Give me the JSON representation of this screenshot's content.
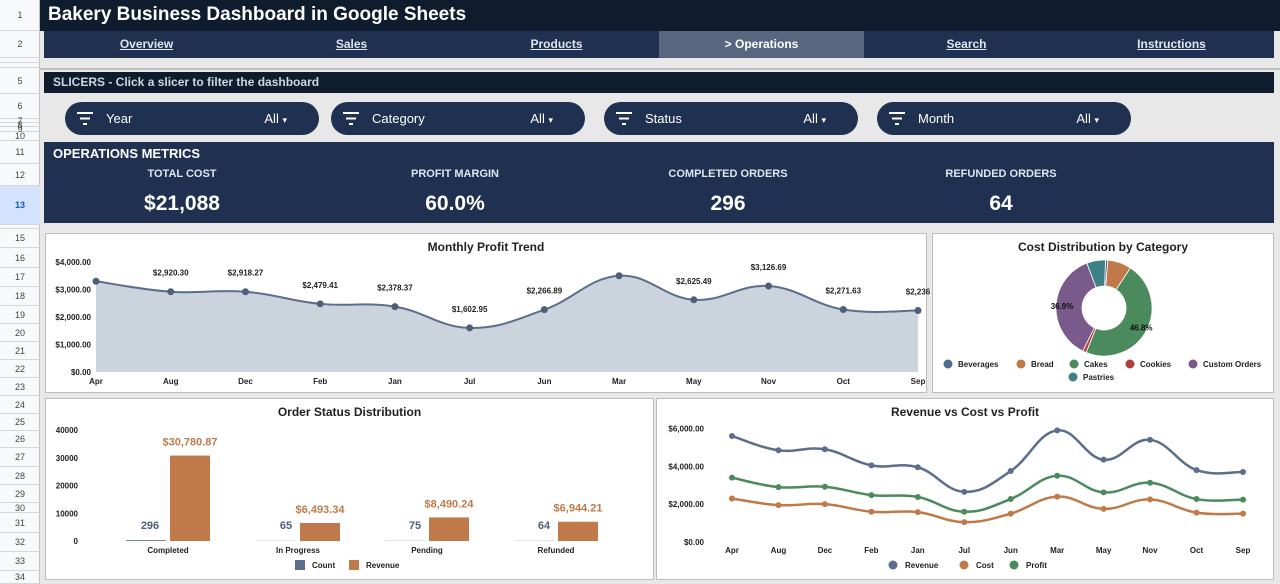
{
  "row_numbers": [
    {
      "n": "1",
      "top": 0,
      "h": 31
    },
    {
      "n": "2",
      "top": 31,
      "h": 27
    },
    {
      "n": "",
      "top": 58,
      "h": 5
    },
    {
      "n": "",
      "top": 63,
      "h": 5
    },
    {
      "n": "5",
      "top": 68,
      "h": 26
    },
    {
      "n": "6",
      "top": 94,
      "h": 25
    },
    {
      "n": "7",
      "top": 119,
      "h": 4
    },
    {
      "n": "8",
      "top": 123,
      "h": 4
    },
    {
      "n": "9",
      "top": 127,
      "h": 5
    },
    {
      "n": "10",
      "top": 132,
      "h": 9
    },
    {
      "n": "11",
      "top": 141,
      "h": 23
    },
    {
      "n": "12",
      "top": 164,
      "h": 22
    },
    {
      "n": "13",
      "top": 186,
      "h": 39
    },
    {
      "n": "",
      "top": 225,
      "h": 4
    },
    {
      "n": "15",
      "top": 229,
      "h": 19
    },
    {
      "n": "16",
      "top": 248,
      "h": 20
    },
    {
      "n": "17",
      "top": 268,
      "h": 19
    },
    {
      "n": "18",
      "top": 287,
      "h": 19
    },
    {
      "n": "19",
      "top": 306,
      "h": 18
    },
    {
      "n": "20",
      "top": 324,
      "h": 18
    },
    {
      "n": "21",
      "top": 342,
      "h": 18
    },
    {
      "n": "22",
      "top": 360,
      "h": 18
    },
    {
      "n": "23",
      "top": 378,
      "h": 18
    },
    {
      "n": "24",
      "top": 396,
      "h": 18
    },
    {
      "n": "25",
      "top": 414,
      "h": 17
    },
    {
      "n": "26",
      "top": 431,
      "h": 17
    },
    {
      "n": "27",
      "top": 448,
      "h": 19
    },
    {
      "n": "28",
      "top": 467,
      "h": 18
    },
    {
      "n": "29",
      "top": 485,
      "h": 18
    },
    {
      "n": "30",
      "top": 503,
      "h": 10
    },
    {
      "n": "31",
      "top": 513,
      "h": 20
    },
    {
      "n": "32",
      "top": 533,
      "h": 19
    },
    {
      "n": "33",
      "top": 552,
      "h": 19
    },
    {
      "n": "34",
      "top": 571,
      "h": 13
    }
  ],
  "title": "Bakery Business Dashboard in Google Sheets",
  "nav": [
    {
      "label": "Overview",
      "active": false
    },
    {
      "label": "Sales",
      "active": false
    },
    {
      "label": "Products",
      "active": false
    },
    {
      "label": "> Operations",
      "active": true
    },
    {
      "label": "Search",
      "active": false
    },
    {
      "label": "Instructions",
      "active": false
    }
  ],
  "slicers_header": "SLICERS - Click a slicer to filter the dashboard",
  "slicers": [
    {
      "label": "Year",
      "value": "All"
    },
    {
      "label": "Category",
      "value": "All"
    },
    {
      "label": "Status",
      "value": "All"
    },
    {
      "label": "Month",
      "value": "All"
    }
  ],
  "metrics": {
    "title": "OPERATIONS METRICS",
    "items": [
      {
        "label": "TOTAL COST",
        "value": "$21,088"
      },
      {
        "label": "PROFIT MARGIN",
        "value": "60.0%"
      },
      {
        "label": "COMPLETED ORDERS",
        "value": "296"
      },
      {
        "label": "REFUNDED ORDERS",
        "value": "64"
      }
    ]
  },
  "colors": {
    "navy": "#1f3050",
    "dark": "#0f1c2e",
    "line": "#5b6e8c",
    "area": "#cbd3dd",
    "revenue": "#5b6e8c",
    "cost": "#c07a4a",
    "profit": "#4a8a5c",
    "bar_revenue": "#c07a4a",
    "bar_count": "#5b6e8c"
  },
  "chart_data": [
    {
      "type": "area",
      "title": "Monthly Profit Trend",
      "categories": [
        "Apr",
        "Aug",
        "Dec",
        "Feb",
        "Jan",
        "Jul",
        "Jun",
        "Mar",
        "May",
        "Nov",
        "Oct",
        "Sep"
      ],
      "values": [
        3300,
        2920.3,
        2918.27,
        2479.41,
        2378.37,
        1602.95,
        2266.89,
        3500,
        2625.49,
        3126.69,
        2271.63,
        2236
      ],
      "labels": [
        "",
        "$2,920.30",
        "$2,918.27",
        "$2,479.41",
        "$2,378.37",
        "$1,602.95",
        "$2,266.89",
        "",
        "$2,625.49",
        "$3,126.69",
        "$2,271.63",
        "$2,236"
      ],
      "yticks": [
        "$0.00",
        "$1,000.00",
        "$2,000.00",
        "$3,000.00",
        "$4,000.00"
      ],
      "ylim": [
        0,
        4000
      ]
    },
    {
      "type": "pie",
      "title": "Cost Distribution by Category",
      "slices": [
        {
          "name": "Beverages",
          "value": 0.8,
          "color": "#4e6b8a"
        },
        {
          "name": "Bread",
          "value": 8.0,
          "color": "#c07a4a"
        },
        {
          "name": "Cakes",
          "value": 46.8,
          "color": "#4a8a5c"
        },
        {
          "name": "Cookies",
          "value": 1.2,
          "color": "#b04040"
        },
        {
          "name": "Custom Orders",
          "value": 36.9,
          "color": "#7a5a8a"
        },
        {
          "name": "Pastries",
          "value": 6.3,
          "color": "#3f7f86"
        }
      ],
      "slice_labels": {
        "Cakes": "46.8%",
        "Custom Orders": "36.9%"
      }
    },
    {
      "type": "bar",
      "title": "Order Status Distribution",
      "categories": [
        "Completed",
        "In Progress",
        "Pending",
        "Refunded"
      ],
      "series": [
        {
          "name": "Count",
          "values": [
            296,
            65,
            75,
            64
          ],
          "labels": [
            "296",
            "65",
            "75",
            "64"
          ]
        },
        {
          "name": "Revenue",
          "values": [
            30780.87,
            6493.34,
            8490.24,
            6944.21
          ],
          "labels": [
            "$30,780.87",
            "$6,493.34",
            "$8,490.24",
            "$6,944.21"
          ]
        }
      ],
      "yticks": [
        "0",
        "10000",
        "20000",
        "30000",
        "40000"
      ],
      "ylim": [
        0,
        40000
      ]
    },
    {
      "type": "line",
      "title": "Revenue vs Cost vs Profit",
      "categories": [
        "Apr",
        "Aug",
        "Dec",
        "Feb",
        "Jan",
        "Jul",
        "Jun",
        "Mar",
        "May",
        "Nov",
        "Oct",
        "Sep"
      ],
      "series": [
        {
          "name": "Revenue",
          "values": [
            5600,
            4850,
            4900,
            4050,
            3950,
            2650,
            3750,
            5900,
            4350,
            5400,
            3800,
            3700
          ]
        },
        {
          "name": "Cost",
          "values": [
            2300,
            1950,
            2000,
            1600,
            1580,
            1050,
            1500,
            2400,
            1750,
            2250,
            1550,
            1500
          ]
        },
        {
          "name": "Profit",
          "values": [
            3400,
            2900,
            2920,
            2480,
            2380,
            1600,
            2270,
            3500,
            2620,
            3130,
            2270,
            2240
          ]
        }
      ],
      "yticks": [
        "$0.00",
        "$2,000.00",
        "$4,000.00",
        "$6,000.00"
      ],
      "ylim": [
        0,
        6500
      ]
    }
  ]
}
